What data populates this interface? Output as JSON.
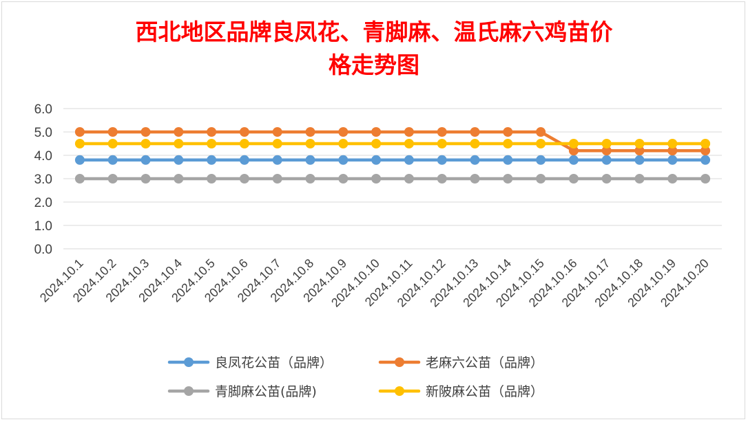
{
  "chart_data": {
    "type": "line",
    "title_lines": [
      "西北地区品牌良凤花、青脚麻、温氏麻六鸡苗价",
      "格走势图"
    ],
    "xlabel": "",
    "ylabel": "",
    "ylim": [
      0,
      6
    ],
    "yticks": [
      "6.0",
      "5.0",
      "4.0",
      "3.0",
      "2.0",
      "1.0",
      "0.0"
    ],
    "grid": "horizontal",
    "legend_position": "bottom",
    "categories": [
      "2024.10.1",
      "2024.10.2",
      "2024.10.3",
      "2024.10.4",
      "2024.10.5",
      "2024.10.6",
      "2024.10.7",
      "2024.10.8",
      "2024.10.9",
      "2024.10.10",
      "2024.10.11",
      "2024.10.12",
      "2024.10.13",
      "2024.10.14",
      "2024.10.15",
      "2024.10.16",
      "2024.10.17",
      "2024.10.18",
      "2024.10.19",
      "2024.10.20"
    ],
    "series": [
      {
        "name": "良凤花公苗（品牌）",
        "color": "#5b9bd5",
        "values": [
          3.8,
          3.8,
          3.8,
          3.8,
          3.8,
          3.8,
          3.8,
          3.8,
          3.8,
          3.8,
          3.8,
          3.8,
          3.8,
          3.8,
          3.8,
          3.8,
          3.8,
          3.8,
          3.8,
          3.8
        ]
      },
      {
        "name": "老麻六公苗（品牌）",
        "color": "#ed7d31",
        "values": [
          5.0,
          5.0,
          5.0,
          5.0,
          5.0,
          5.0,
          5.0,
          5.0,
          5.0,
          5.0,
          5.0,
          5.0,
          5.0,
          5.0,
          5.0,
          4.2,
          4.2,
          4.2,
          4.2,
          4.2
        ]
      },
      {
        "name": "青脚麻公苗(品牌)",
        "color": "#a5a5a5",
        "values": [
          3.0,
          3.0,
          3.0,
          3.0,
          3.0,
          3.0,
          3.0,
          3.0,
          3.0,
          3.0,
          3.0,
          3.0,
          3.0,
          3.0,
          3.0,
          3.0,
          3.0,
          3.0,
          3.0,
          3.0
        ]
      },
      {
        "name": "新陂麻公苗（品牌）",
        "color": "#ffc000",
        "values": [
          4.5,
          4.5,
          4.5,
          4.5,
          4.5,
          4.5,
          4.5,
          4.5,
          4.5,
          4.5,
          4.5,
          4.5,
          4.5,
          4.5,
          4.5,
          4.5,
          4.5,
          4.5,
          4.5,
          4.5
        ]
      }
    ]
  }
}
